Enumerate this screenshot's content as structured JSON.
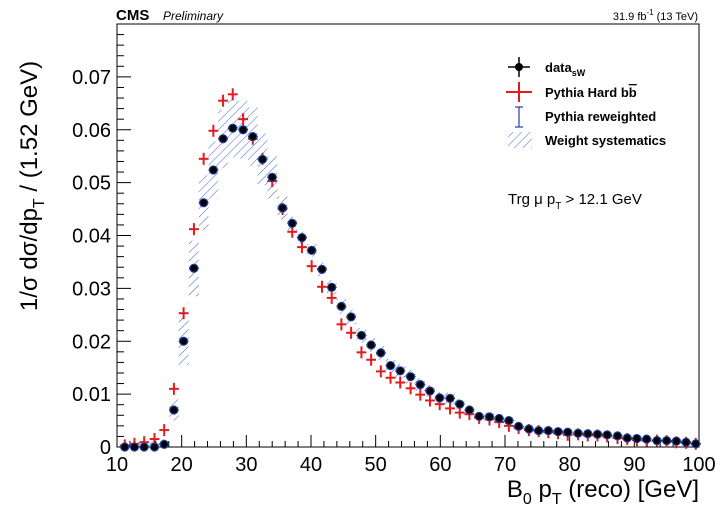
{
  "header": {
    "experiment": "CMS",
    "status": "Preliminary",
    "lumi_main": "31.9 fb",
    "lumi_sup": "-1",
    "lumi_energy": "(13 TeV)"
  },
  "colors": {
    "data": "#000000",
    "hard": "#e41a1c",
    "reweighted": "#1f3f9f",
    "syst": "#3a5fcd",
    "axis": "#000000"
  },
  "chart_data": {
    "type": "scatter",
    "xlabel": {
      "main": "B",
      "sub1": "0",
      "mid": " p",
      "sub2": "T",
      "tail": " (reco) [GeV]"
    },
    "ylabel": {
      "pre": "1/σ dσ/dp",
      "sub": "T",
      "post": " / (1.52 GeV)"
    },
    "xlim": [
      10,
      100
    ],
    "ylim": [
      0,
      0.08
    ],
    "xticks": [
      10,
      20,
      30,
      40,
      50,
      60,
      70,
      80,
      90,
      100
    ],
    "yticks": [
      0,
      0.01,
      0.02,
      0.03,
      0.04,
      0.05,
      0.06,
      0.07
    ],
    "ytick_labels": [
      "0",
      "0.01",
      "0.02",
      "0.03",
      "0.04",
      "0.05",
      "0.06",
      "0.07"
    ],
    "annotation": {
      "pre": "Trg μ p",
      "sub": "T",
      "post": " > 12.1 GeV"
    },
    "legend": {
      "position": "top-right",
      "entries": [
        {
          "key": "data",
          "main": "data",
          "sub": "sW"
        },
        {
          "key": "hard",
          "main": "Pythia Hard b",
          "over": "b"
        },
        {
          "key": "reweighted",
          "main": "Pythia reweighted"
        },
        {
          "key": "syst",
          "main": "Weight systematics"
        }
      ]
    },
    "bin_width": 1.52,
    "x": [
      11.2,
      12.7,
      14.2,
      15.8,
      17.3,
      18.8,
      20.3,
      21.9,
      23.4,
      24.9,
      26.4,
      27.9,
      29.5,
      31.0,
      32.5,
      34.0,
      35.6,
      37.1,
      38.6,
      40.1,
      41.7,
      43.2,
      44.7,
      46.2,
      47.8,
      49.3,
      50.8,
      52.3,
      53.8,
      55.4,
      56.9,
      58.4,
      59.9,
      61.5,
      63.0,
      64.5,
      66.0,
      67.6,
      69.1,
      70.6,
      72.1,
      73.7,
      75.2,
      76.7,
      78.2,
      79.7,
      81.3,
      82.8,
      84.3,
      85.8,
      87.4,
      88.9,
      90.4,
      91.9,
      93.5,
      95.0,
      96.5,
      98.0,
      99.5
    ],
    "series": [
      {
        "name": "data",
        "style": "markers",
        "values": [
          0.0,
          0.0,
          0.0,
          0.0,
          0.0005,
          0.007,
          0.02,
          0.0338,
          0.0462,
          0.0524,
          0.0583,
          0.0603,
          0.06,
          0.0587,
          0.0544,
          0.051,
          0.0452,
          0.0423,
          0.0396,
          0.0372,
          0.0336,
          0.0302,
          0.0266,
          0.0246,
          0.0211,
          0.0193,
          0.0178,
          0.0154,
          0.0144,
          0.0133,
          0.0118,
          0.0106,
          0.0093,
          0.0092,
          0.0081,
          0.007,
          0.0058,
          0.0057,
          0.0054,
          0.005,
          0.0039,
          0.0034,
          0.0031,
          0.0031,
          0.0029,
          0.0028,
          0.0026,
          0.0025,
          0.0024,
          0.0023,
          0.0021,
          0.0017,
          0.0016,
          0.0015,
          0.0012,
          0.0012,
          0.0011,
          0.0009,
          0.0006
        ]
      },
      {
        "name": "hard",
        "style": "crosses",
        "values": [
          0.0003,
          0.0006,
          0.0009,
          0.0015,
          0.0032,
          0.011,
          0.0253,
          0.0412,
          0.0545,
          0.0598,
          0.0655,
          0.0667,
          0.062,
          0.0583,
          0.0545,
          0.0503,
          0.045,
          0.0407,
          0.0378,
          0.0342,
          0.0303,
          0.0282,
          0.0232,
          0.0216,
          0.0179,
          0.0165,
          0.0143,
          0.0131,
          0.0122,
          0.0111,
          0.0099,
          0.0088,
          0.0081,
          0.0073,
          0.0065,
          0.0062,
          0.0055,
          0.0052,
          0.0047,
          0.004,
          0.0036,
          0.0032,
          0.003,
          0.0028,
          0.0026,
          0.0023,
          0.0024,
          0.0022,
          0.0022,
          0.002,
          0.0017,
          0.0015,
          0.0013,
          0.0012,
          0.0012,
          0.0011,
          0.0009,
          0.0008,
          0.0006
        ]
      },
      {
        "name": "reweighted",
        "style": "errorbars",
        "values": [
          0.0,
          0.0,
          0.0,
          0.0,
          0.0005,
          0.007,
          0.02,
          0.0338,
          0.0462,
          0.0524,
          0.0583,
          0.0603,
          0.06,
          0.0587,
          0.0544,
          0.051,
          0.0452,
          0.0423,
          0.0396,
          0.0372,
          0.0336,
          0.0302,
          0.0266,
          0.0246,
          0.0211,
          0.0193,
          0.0178,
          0.0154,
          0.0144,
          0.0133,
          0.0118,
          0.0106,
          0.0093,
          0.0092,
          0.0081,
          0.007,
          0.0058,
          0.0057,
          0.0054,
          0.005,
          0.0039,
          0.0034,
          0.0031,
          0.0031,
          0.0029,
          0.0028,
          0.0026,
          0.0025,
          0.0024,
          0.0023,
          0.0021,
          0.0017,
          0.0016,
          0.0015,
          0.0012,
          0.0012,
          0.0011,
          0.0009,
          0.0006
        ]
      }
    ],
    "syst_band": {
      "name": "syst",
      "low": [
        0.0,
        0.0,
        0.0,
        0.0,
        0.0,
        0.005,
        0.0155,
        0.0285,
        0.041,
        0.047,
        0.0528,
        0.0548,
        0.0545,
        0.0532,
        0.0495,
        0.047,
        0.043,
        0.041,
        0.0385,
        0.036,
        0.0323,
        0.0288,
        0.0252,
        0.0232,
        0.0197,
        0.018,
        0.0165,
        0.0141,
        0.0131,
        0.012,
        0.0106,
        0.0095,
        0.0082,
        0.0081,
        0.0071,
        0.0061,
        0.005,
        0.0049,
        0.0047,
        0.0043,
        0.0033,
        0.0029,
        0.0026,
        0.0026,
        0.0024,
        0.0023,
        0.0021,
        0.0021,
        0.002,
        0.0019,
        0.0017,
        0.0014,
        0.0013,
        0.0012,
        0.001,
        0.001,
        0.0009,
        0.0007,
        0.0004
      ],
      "high": [
        0.0006,
        0.0008,
        0.0009,
        0.0011,
        0.0015,
        0.009,
        0.0245,
        0.039,
        0.0514,
        0.0578,
        0.0638,
        0.0658,
        0.0655,
        0.0642,
        0.0593,
        0.055,
        0.0474,
        0.0436,
        0.0407,
        0.0384,
        0.0349,
        0.0316,
        0.028,
        0.026,
        0.0225,
        0.0206,
        0.0191,
        0.0167,
        0.0157,
        0.0146,
        0.013,
        0.0117,
        0.0104,
        0.0103,
        0.0091,
        0.0079,
        0.0066,
        0.0065,
        0.0061,
        0.0057,
        0.0045,
        0.0039,
        0.0036,
        0.0036,
        0.0034,
        0.0033,
        0.0031,
        0.0029,
        0.0028,
        0.0027,
        0.0025,
        0.002,
        0.0019,
        0.0018,
        0.0014,
        0.0014,
        0.0013,
        0.0011,
        0.0008
      ]
    }
  }
}
